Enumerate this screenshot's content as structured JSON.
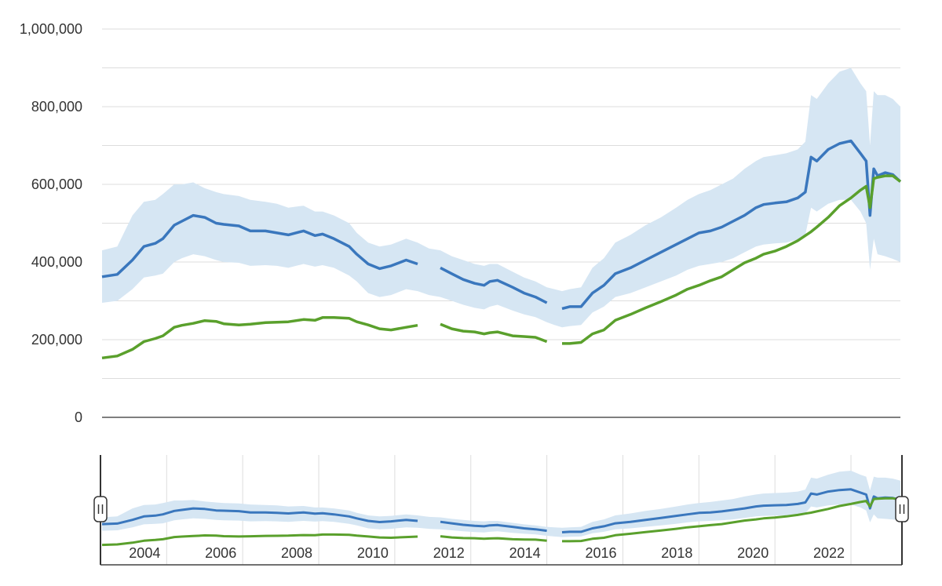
{
  "chart_data": {
    "type": "line",
    "title": "",
    "xlabel": "",
    "ylabel": "",
    "x_range": [
      2002.9,
      2023.9
    ],
    "ylim": [
      0,
      1000000
    ],
    "y_ticks": [
      0,
      200000,
      400000,
      600000,
      800000,
      1000000
    ],
    "y_tick_labels": [
      "0",
      "200,000",
      "400,000",
      "600,000",
      "800,000",
      "1,000,000"
    ],
    "navigator_tick_labels": [
      "2004",
      "2006",
      "2008",
      "2010",
      "2012",
      "2014",
      "2016",
      "2018",
      "2020",
      "2022"
    ],
    "grid": true,
    "legend": "none",
    "colors": {
      "blue": "#3a77bd",
      "green": "#5aa02c",
      "band": "#d6e6f3",
      "grid": "#dddddd",
      "axis": "#333333"
    },
    "x": [
      2002.9,
      2003.3,
      2003.7,
      2004.0,
      2004.3,
      2004.5,
      2004.8,
      2005.0,
      2005.3,
      2005.6,
      2005.9,
      2006.1,
      2006.5,
      2006.8,
      2007.2,
      2007.5,
      2007.8,
      2008.2,
      2008.5,
      2008.7,
      2009.0,
      2009.4,
      2009.6,
      2009.9,
      2010.2,
      2010.5,
      2010.9,
      2011.2,
      2011.5,
      2011.8,
      2012.1,
      2012.4,
      2012.7,
      2012.95,
      2013.1,
      2013.3,
      2013.7,
      2014.0,
      2014.3,
      2014.6,
      2014.8,
      2015.0,
      2015.2,
      2015.5,
      2015.8,
      2016.1,
      2016.4,
      2016.8,
      2017.2,
      2017.6,
      2018.0,
      2018.3,
      2018.6,
      2018.9,
      2019.2,
      2019.5,
      2019.8,
      2020.1,
      2020.3,
      2020.6,
      2020.9,
      2021.2,
      2021.4,
      2021.55,
      2021.7,
      2022.0,
      2022.3,
      2022.6,
      2022.85,
      2023.0,
      2023.1,
      2023.2,
      2023.3,
      2023.5,
      2023.7,
      2023.9
    ],
    "series": [
      {
        "values": [
          362000,
          368000,
          405000,
          440000,
          448000,
          460000,
          495000,
          505000,
          520000,
          515000,
          500000,
          497000,
          493000,
          480000,
          480000,
          475000,
          470000,
          480000,
          468000,
          472000,
          460000,
          440000,
          420000,
          395000,
          383000,
          390000,
          405000,
          395000,
          null,
          385000,
          370000,
          355000,
          345000,
          340000,
          350000,
          353000,
          335000,
          320000,
          310000,
          295000,
          null,
          280000,
          285000,
          285000,
          320000,
          340000,
          370000,
          385000,
          405000,
          425000,
          445000,
          460000,
          475000,
          480000,
          490000,
          505000,
          520000,
          540000,
          548000,
          552000,
          555000,
          565000,
          580000,
          670000,
          660000,
          690000,
          705000,
          712000,
          680000,
          660000,
          520000,
          640000,
          622000,
          630000,
          625000,
          607000
        ]
      },
      {
        "values": [
          153000,
          158000,
          175000,
          195000,
          203000,
          210000,
          232000,
          237000,
          242000,
          249000,
          247000,
          241000,
          238000,
          240000,
          244000,
          245000,
          246000,
          252000,
          250000,
          257000,
          257000,
          255000,
          246000,
          238000,
          228000,
          225000,
          232000,
          237000,
          null,
          240000,
          228000,
          222000,
          220000,
          215000,
          218000,
          220000,
          210000,
          208000,
          206000,
          195000,
          null,
          190000,
          190000,
          193000,
          215000,
          225000,
          250000,
          265000,
          282000,
          298000,
          315000,
          330000,
          340000,
          352000,
          362000,
          380000,
          398000,
          410000,
          420000,
          428000,
          440000,
          455000,
          468000,
          478000,
          490000,
          515000,
          545000,
          565000,
          585000,
          595000,
          540000,
          615000,
          618000,
          622000,
          622000,
          607000
        ]
      }
    ],
    "band": {
      "upper": [
        430000,
        440000,
        520000,
        555000,
        560000,
        575000,
        600000,
        600000,
        605000,
        590000,
        580000,
        575000,
        570000,
        560000,
        555000,
        550000,
        540000,
        545000,
        530000,
        530000,
        520000,
        500000,
        475000,
        450000,
        440000,
        445000,
        460000,
        450000,
        435000,
        430000,
        415000,
        405000,
        395000,
        390000,
        395000,
        395000,
        375000,
        360000,
        350000,
        335000,
        330000,
        325000,
        330000,
        335000,
        385000,
        410000,
        450000,
        470000,
        495000,
        515000,
        540000,
        560000,
        575000,
        585000,
        600000,
        615000,
        640000,
        660000,
        670000,
        675000,
        680000,
        690000,
        710000,
        830000,
        820000,
        860000,
        890000,
        900000,
        860000,
        840000,
        700000,
        840000,
        830000,
        830000,
        820000,
        800000
      ],
      "lower": [
        295000,
        300000,
        330000,
        360000,
        365000,
        370000,
        400000,
        410000,
        420000,
        415000,
        405000,
        400000,
        398000,
        390000,
        392000,
        390000,
        385000,
        395000,
        388000,
        392000,
        385000,
        365000,
        350000,
        320000,
        310000,
        315000,
        330000,
        325000,
        315000,
        310000,
        300000,
        290000,
        282000,
        278000,
        285000,
        290000,
        275000,
        265000,
        258000,
        245000,
        238000,
        232000,
        235000,
        238000,
        270000,
        285000,
        310000,
        320000,
        335000,
        350000,
        365000,
        380000,
        390000,
        395000,
        400000,
        410000,
        425000,
        440000,
        445000,
        448000,
        450000,
        458000,
        470000,
        540000,
        530000,
        550000,
        560000,
        560000,
        530000,
        500000,
        380000,
        460000,
        420000,
        415000,
        408000,
        400000
      ]
    }
  }
}
